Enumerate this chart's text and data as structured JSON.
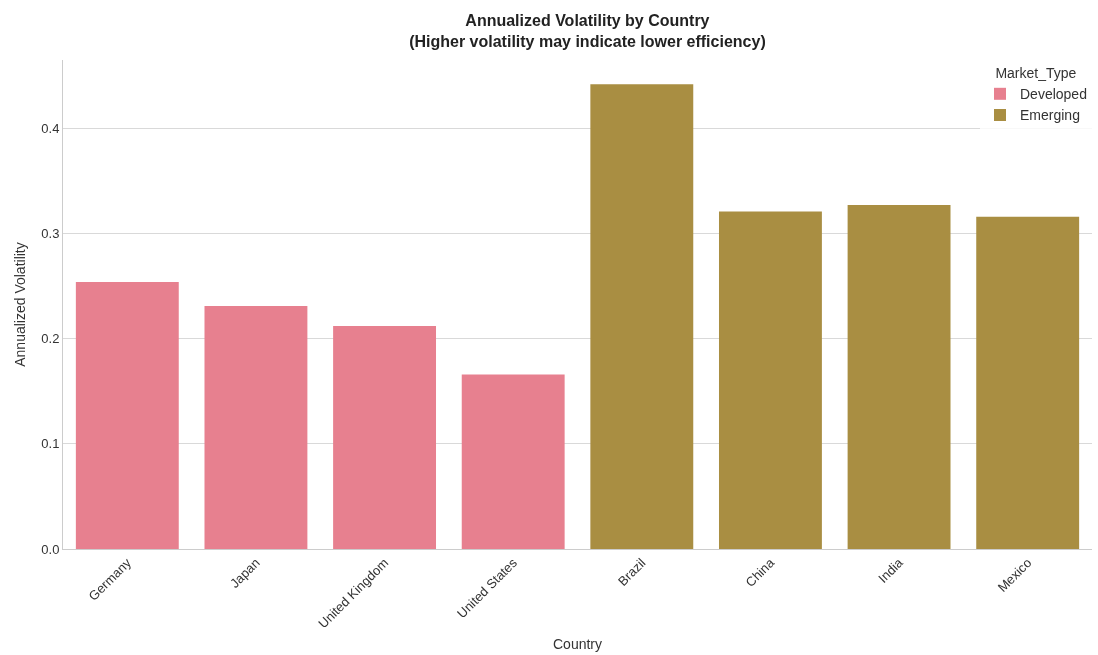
{
  "chart_data": {
    "type": "bar",
    "title": "Annualized Volatility by Country\n(Higher volatility may indicate lower efficiency)",
    "xlabel": "Country",
    "ylabel": "Annualized Volatility",
    "legend_title": "Market_Type",
    "categories": [
      "Germany",
      "Japan",
      "United Kingdom",
      "United States",
      "Brazil",
      "China",
      "India",
      "Mexico"
    ],
    "series": [
      {
        "name": "Developed",
        "color": "#e7808f",
        "values": [
          0.254,
          0.231,
          0.212,
          0.166,
          null,
          null,
          null,
          null
        ]
      },
      {
        "name": "Emerging",
        "color": "#a98e42",
        "values": [
          null,
          null,
          null,
          null,
          0.442,
          0.321,
          0.327,
          0.316
        ]
      }
    ],
    "ylim": [
      0,
      0.465
    ],
    "yticks": [
      {
        "value": 0,
        "label": "0.0"
      },
      0.1,
      0.2,
      0.3,
      0.4
    ],
    "grid": "y",
    "legend": "top right"
  }
}
